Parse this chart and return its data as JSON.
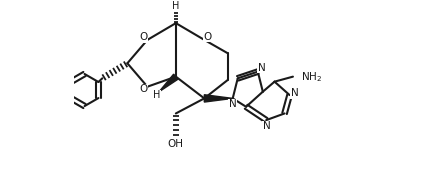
{
  "background_color": "#ffffff",
  "line_color": "#1a1a1a",
  "line_width": 1.5,
  "fig_width": 4.32,
  "fig_height": 1.71,
  "dpi": 100,
  "xlim": [
    0.0,
    8.5
  ],
  "ylim": [
    -1.8,
    3.2
  ]
}
